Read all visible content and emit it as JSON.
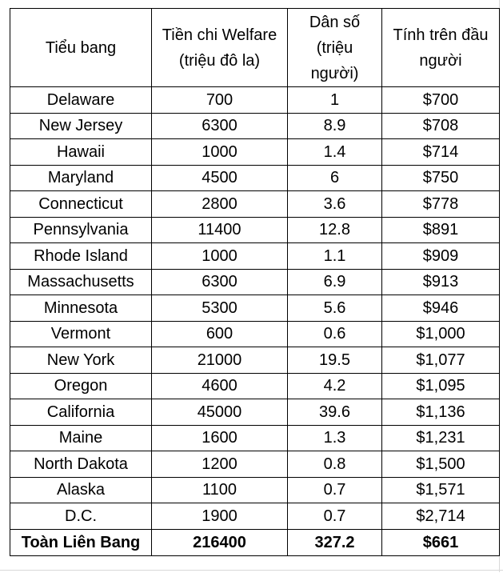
{
  "table": {
    "headers": [
      "Tiểu bang",
      "Tiền chi Welfare (triệu đô la)",
      "Dân số (triệu người)",
      "Tính trên đầu người"
    ],
    "rows": [
      [
        "Delaware",
        "700",
        "1",
        "$700"
      ],
      [
        "New Jersey",
        "6300",
        "8.9",
        "$708"
      ],
      [
        "Hawaii",
        "1000",
        "1.4",
        "$714"
      ],
      [
        "Maryland",
        "4500",
        "6",
        "$750"
      ],
      [
        "Connecticut",
        "2800",
        "3.6",
        "$778"
      ],
      [
        "Pennsylvania",
        "11400",
        "12.8",
        "$891"
      ],
      [
        "Rhode Island",
        "1000",
        "1.1",
        "$909"
      ],
      [
        "Massachusetts",
        "6300",
        "6.9",
        "$913"
      ],
      [
        "Minnesota",
        "5300",
        "5.6",
        "$946"
      ],
      [
        "Vermont",
        "600",
        "0.6",
        "$1,000"
      ],
      [
        "New York",
        "21000",
        "19.5",
        "$1,077"
      ],
      [
        "Oregon",
        "4600",
        "4.2",
        "$1,095"
      ],
      [
        "California",
        "45000",
        "39.6",
        "$1,136"
      ],
      [
        "Maine",
        "1600",
        "1.3",
        "$1,231"
      ],
      [
        "North Dakota",
        "1200",
        "0.8",
        "$1,500"
      ],
      [
        "Alaska",
        "1100",
        "0.7",
        "$1,571"
      ],
      [
        "D.C.",
        "1900",
        "0.7",
        "$2,714"
      ]
    ],
    "total": [
      "Toàn Liên Bang",
      "216400",
      "327.2",
      "$661"
    ]
  }
}
